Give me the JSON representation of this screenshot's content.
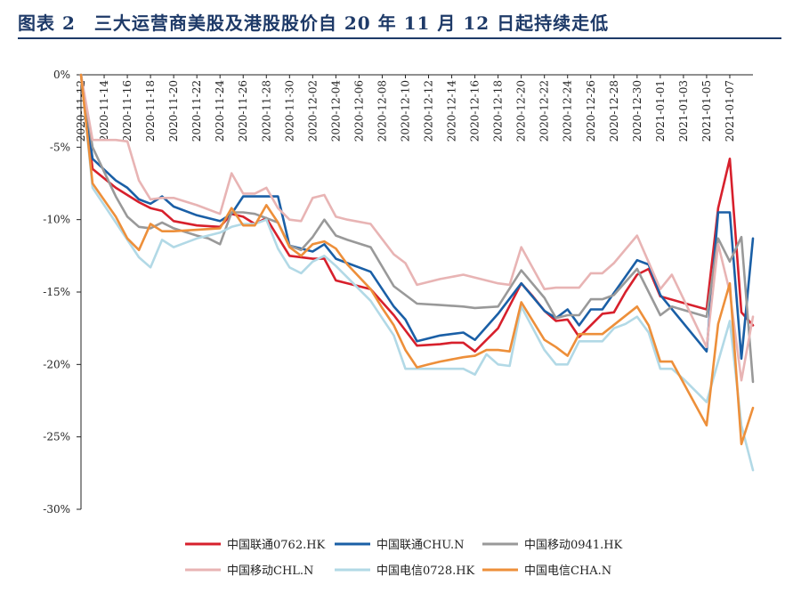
{
  "header": {
    "title": "图表 2　三大运营商美股及港股股价自 20 年 11 月 12 日起持续走低"
  },
  "chart_data": {
    "type": "line",
    "title": "三大运营商美股及港股股价自 20 年 11 月 12 日起持续走低",
    "xlabel": "",
    "ylabel": "",
    "ylim": [
      -30,
      0
    ],
    "yticks": [
      0,
      -5,
      -10,
      -15,
      -20,
      -25,
      -30
    ],
    "ytick_labels": [
      "0%",
      "-5%",
      "-10%",
      "-15%",
      "-20%",
      "-25%",
      "-30%"
    ],
    "x_tick_labels": [
      "2020-11-12",
      "2020-11-14",
      "2020-11-16",
      "2020-11-18",
      "2020-11-20",
      "2020-11-22",
      "2020-11-24",
      "2020-11-26",
      "2020-11-28",
      "2020-11-30",
      "2020-12-02",
      "2020-12-04",
      "2020-12-06",
      "2020-12-08",
      "2020-12-10",
      "2020-12-12",
      "2020-12-14",
      "2020-12-16",
      "2020-12-18",
      "2020-12-20",
      "2020-12-22",
      "2020-12-24",
      "2020-12-26",
      "2020-12-28",
      "2020-12-30",
      "2021-01-01",
      "2021-01-03",
      "2021-01-05",
      "2021-01-07"
    ],
    "x_start": 0,
    "x_end": 58,
    "legend_position": "bottom",
    "series": [
      {
        "name": "中国联通0762.HK",
        "color": "#d7202c",
        "x": [
          0,
          1,
          3,
          4,
          5,
          6,
          7,
          8,
          10,
          12,
          13,
          14,
          15,
          16,
          17,
          18,
          20,
          21,
          22,
          23,
          25,
          27,
          29,
          31,
          32,
          33,
          34,
          36,
          38,
          39,
          40,
          41,
          42,
          43,
          45,
          46,
          47,
          48,
          49,
          50,
          54,
          55,
          56,
          57,
          58
        ],
        "y": [
          0,
          -6.5,
          -7.8,
          -8.3,
          -8.8,
          -9.2,
          -9.4,
          -10.1,
          -10.4,
          -10.5,
          -9.6,
          -9.8,
          -10.3,
          -9.9,
          -11.2,
          -12.5,
          -12.7,
          -12.7,
          -14.2,
          -14.4,
          -14.8,
          -16.6,
          -18.7,
          -18.6,
          -18.5,
          -18.5,
          -19.1,
          -17.5,
          -14.4,
          -15.3,
          -16.3,
          -17.0,
          -16.9,
          -18.1,
          -16.5,
          -16.4,
          -15.0,
          -13.8,
          -13.4,
          -15.3,
          -16.2,
          -9.2,
          -5.8,
          -16.4,
          -17.3
        ]
      },
      {
        "name": "中国联通CHU.N",
        "color": "#1a5fa6",
        "x": [
          0,
          1,
          3,
          4,
          5,
          6,
          7,
          8,
          10,
          12,
          13,
          14,
          16,
          17,
          18,
          20,
          21,
          22,
          23,
          25,
          27,
          28,
          29,
          31,
          33,
          34,
          36,
          38,
          40,
          41,
          42,
          43,
          44,
          45,
          48,
          49,
          50,
          54,
          55,
          56,
          57,
          58
        ],
        "y": [
          0,
          -5.8,
          -7.3,
          -7.8,
          -8.6,
          -8.9,
          -8.4,
          -9.1,
          -9.7,
          -10.1,
          -9.6,
          -8.4,
          -8.4,
          -8.4,
          -11.8,
          -12.2,
          -11.7,
          -12.7,
          -13.0,
          -13.6,
          -16.0,
          -16.9,
          -18.4,
          -18.0,
          -17.8,
          -18.3,
          -16.5,
          -14.4,
          -16.3,
          -16.8,
          -16.2,
          -17.3,
          -16.2,
          -16.2,
          -12.8,
          -13.1,
          -15.2,
          -19.1,
          -9.5,
          -9.5,
          -19.6,
          -11.3
        ]
      },
      {
        "name": "中国移动0941.HK",
        "color": "#999999",
        "x": [
          0,
          1,
          3,
          4,
          5,
          6,
          7,
          8,
          10,
          11,
          12,
          13,
          14,
          15,
          17,
          18,
          19,
          20,
          21,
          22,
          23,
          25,
          27,
          29,
          31,
          33,
          34,
          36,
          38,
          40,
          41,
          42,
          43,
          44,
          45,
          46,
          48,
          50,
          51,
          54,
          55,
          56,
          57,
          58
        ],
        "y": [
          0,
          -5.0,
          -8.4,
          -9.8,
          -10.5,
          -10.6,
          -10.2,
          -10.6,
          -11.1,
          -11.3,
          -11.7,
          -9.5,
          -9.5,
          -9.6,
          -10.2,
          -11.8,
          -12.1,
          -11.2,
          -10.0,
          -11.1,
          -11.4,
          -11.9,
          -14.6,
          -15.8,
          -15.9,
          -16.0,
          -16.1,
          -16.0,
          -13.5,
          -15.4,
          -16.8,
          -16.6,
          -16.6,
          -15.5,
          -15.5,
          -15.2,
          -13.4,
          -16.6,
          -16.0,
          -16.7,
          -11.3,
          -12.9,
          -11.2,
          -21.2
        ]
      },
      {
        "name": "中国移动CHL.N",
        "color": "#e8b4b4",
        "x": [
          0,
          1,
          3,
          4,
          5,
          6,
          7,
          8,
          10,
          12,
          13,
          14,
          15,
          16,
          17,
          18,
          19,
          20,
          21,
          22,
          23,
          25,
          27,
          28,
          29,
          31,
          33,
          34,
          36,
          37,
          38,
          40,
          41,
          42,
          43,
          44,
          45,
          46,
          48,
          50,
          51,
          54,
          55,
          56,
          57,
          58
        ],
        "y": [
          0,
          -4.5,
          -4.5,
          -4.6,
          -7.3,
          -8.6,
          -8.5,
          -8.5,
          -9.0,
          -9.6,
          -6.8,
          -8.2,
          -8.2,
          -7.8,
          -9.2,
          -10.0,
          -10.1,
          -8.5,
          -8.3,
          -9.8,
          -10.0,
          -10.3,
          -12.4,
          -13.0,
          -14.5,
          -14.1,
          -13.8,
          -14.0,
          -14.4,
          -14.5,
          -11.9,
          -14.8,
          -14.7,
          -14.7,
          -14.7,
          -13.7,
          -13.7,
          -13.0,
          -11.1,
          -14.8,
          -13.8,
          -18.8,
          -11.7,
          -15.0,
          -21.1,
          -16.7
        ]
      },
      {
        "name": "中国电信0728.HK",
        "color": "#b2d9e6",
        "x": [
          0,
          1,
          3,
          4,
          5,
          6,
          7,
          8,
          9,
          10,
          12,
          13,
          14,
          15,
          16,
          17,
          18,
          19,
          20,
          21,
          22,
          23,
          25,
          26,
          27,
          28,
          29,
          30,
          31,
          32,
          33,
          34,
          35,
          36,
          37,
          38,
          40,
          41,
          42,
          43,
          44,
          45,
          46,
          47,
          48,
          49,
          50,
          51,
          52,
          54,
          55,
          56,
          57,
          58
        ],
        "y": [
          0,
          -7.8,
          -10.2,
          -11.4,
          -12.6,
          -13.3,
          -11.4,
          -11.9,
          -11.6,
          -11.3,
          -10.9,
          -10.5,
          -10.3,
          -10.3,
          -10.0,
          -12.0,
          -13.3,
          -13.7,
          -12.9,
          -12.5,
          -13.2,
          -14.0,
          -15.6,
          -16.8,
          -18.0,
          -20.3,
          -20.3,
          -20.3,
          -20.3,
          -20.3,
          -20.3,
          -20.7,
          -19.3,
          -20.0,
          -20.1,
          -16.0,
          -19.0,
          -20.0,
          -20.0,
          -18.4,
          -18.4,
          -18.4,
          -17.5,
          -17.2,
          -16.7,
          -17.8,
          -20.3,
          -20.3,
          -21.0,
          -22.6,
          -19.8,
          -17.0,
          -24.2,
          -27.3
        ]
      },
      {
        "name": "中国电信CHA.N",
        "color": "#ed8f3a",
        "x": [
          0,
          1,
          3,
          4,
          5,
          6,
          7,
          8,
          10,
          12,
          13,
          14,
          15,
          16,
          17,
          18,
          19,
          20,
          21,
          22,
          23,
          25,
          26,
          27,
          28,
          29,
          30,
          31,
          33,
          34,
          35,
          36,
          37,
          38,
          40,
          41,
          42,
          43,
          44,
          45,
          48,
          49,
          50,
          51,
          54,
          55,
          56,
          57,
          58
        ],
        "y": [
          0,
          -7.5,
          -9.8,
          -11.3,
          -12.1,
          -10.3,
          -10.8,
          -10.8,
          -10.7,
          -10.6,
          -9.2,
          -10.4,
          -10.4,
          -9.0,
          -10.2,
          -11.9,
          -12.5,
          -11.7,
          -11.5,
          -12.0,
          -13.1,
          -14.8,
          -16.1,
          -17.3,
          -19.0,
          -20.2,
          -20.0,
          -19.8,
          -19.5,
          -19.4,
          -19.0,
          -19.0,
          -19.1,
          -15.7,
          -18.3,
          -18.8,
          -19.4,
          -17.9,
          -17.9,
          -17.9,
          -16.0,
          -17.3,
          -19.8,
          -19.8,
          -24.2,
          -17.2,
          -14.4,
          -25.5,
          -23.0
        ]
      }
    ]
  }
}
